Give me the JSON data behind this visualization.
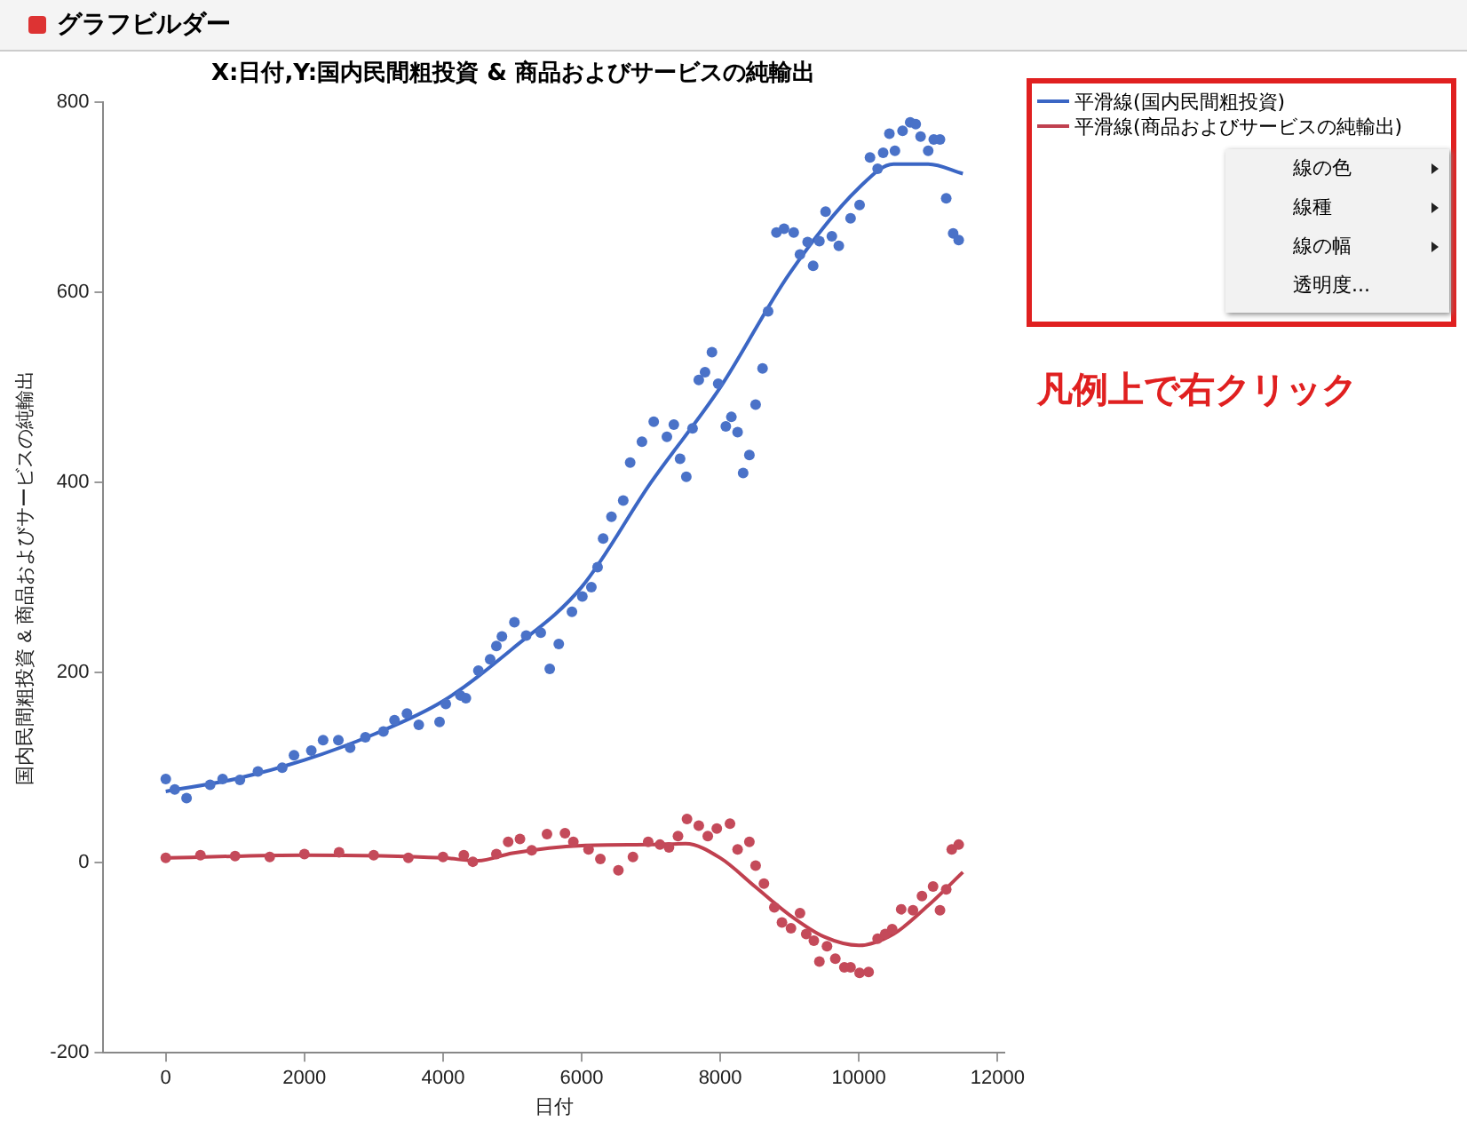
{
  "chart_data": {
    "type": "scatter",
    "title": "X:日付,Y:国内民間粗投資 & 商品およびサービスの純輸出",
    "xlabel": "日付",
    "ylabel": "国内民間粗投資 & 商品およびサービスの純輸出",
    "annotations": [
      "グラフビルダー",
      "線の色",
      "線種",
      "線の幅",
      "透明度...",
      "凡例上で右クリック"
    ],
    "xlim": [
      -900,
      12100
    ],
    "xticks": [
      0,
      2000,
      4000,
      6000,
      8000,
      10000,
      12000
    ],
    "ylim": [
      -200,
      800
    ],
    "yticks": [
      -200,
      0,
      200,
      400,
      600,
      800
    ],
    "legend": "right",
    "series": [
      {
        "marker": "circle",
        "color": "#4a72c8",
        "x": [
          0,
          130,
          300,
          640,
          820,
          1070,
          1330,
          1680,
          1850,
          2100,
          2270,
          2490,
          2660,
          2880,
          3140,
          3300,
          3480,
          3650,
          3950,
          4040,
          4250,
          4330,
          4510,
          4680,
          4770,
          4850,
          5030,
          5200,
          5410,
          5540,
          5670,
          5860,
          6010,
          6140,
          6230,
          6310,
          6430,
          6600,
          6700,
          6870,
          7040,
          7230,
          7330,
          7420,
          7510,
          7600,
          7690,
          7780,
          7880,
          7970,
          8080,
          8160,
          8250,
          8330,
          8420,
          8510,
          8610,
          8690,
          8810,
          8920,
          9060,
          9150,
          9260,
          9340,
          9430,
          9520,
          9610,
          9710,
          9880,
          10010,
          10160,
          10270,
          10350,
          10440,
          10520,
          10630,
          10740,
          10820,
          10890,
          11000,
          11080,
          11170,
          11260,
          11360,
          11440
        ],
        "values": [
          88,
          77,
          68,
          82,
          88,
          87,
          96,
          100,
          113,
          118,
          129,
          129,
          121,
          132,
          138,
          150,
          157,
          145,
          148,
          167,
          176,
          173,
          202,
          214,
          228,
          238,
          253,
          239,
          242,
          204,
          230,
          264,
          280,
          290,
          311,
          341,
          364,
          381,
          421,
          443,
          464,
          448,
          461,
          425,
          406,
          457,
          508,
          516,
          537,
          504,
          459,
          469,
          453,
          410,
          429,
          482,
          520,
          580,
          663,
          667,
          663,
          640,
          653,
          628,
          654,
          685,
          659,
          649,
          678,
          692,
          742,
          730,
          747,
          767,
          749,
          770,
          779,
          777,
          764,
          749,
          761,
          761,
          699,
          662,
          655
        ]
      },
      {
        "marker": "circle",
        "color": "#c44a5a",
        "x": [
          0,
          500,
          1000,
          1500,
          2000,
          2500,
          3000,
          3500,
          4000,
          4300,
          4430,
          4770,
          4940,
          5110,
          5280,
          5500,
          5760,
          5880,
          6100,
          6270,
          6530,
          6740,
          6960,
          7130,
          7260,
          7390,
          7520,
          7690,
          7820,
          7950,
          8140,
          8250,
          8420,
          8510,
          8630,
          8780,
          8890,
          9020,
          9150,
          9240,
          9350,
          9430,
          9540,
          9660,
          9790,
          9880,
          10010,
          10140,
          10270,
          10380,
          10480,
          10610,
          10780,
          10910,
          11070,
          11170,
          11260,
          11340,
          11440
        ],
        "values": [
          5,
          8,
          7,
          6,
          9,
          11,
          8,
          5,
          6,
          8,
          1,
          9,
          22,
          25,
          13,
          30,
          31,
          22,
          14,
          4,
          -8,
          6,
          22,
          19,
          16,
          28,
          46,
          39,
          28,
          36,
          41,
          14,
          22,
          -3,
          -22,
          -47,
          -63,
          -69,
          -53,
          -75,
          -82,
          -104,
          -88,
          -101,
          -110,
          -110,
          -116,
          -115,
          -80,
          -75,
          -70,
          -49,
          -50,
          -35,
          -25,
          -50,
          -28,
          14,
          19
        ]
      },
      {
        "type": "line",
        "marker": "none",
        "name": "平滑線(国内民間粗投資)",
        "color": "#3b66c4",
        "x": [
          0,
          1000,
          2000,
          3000,
          4000,
          5000,
          6000,
          7000,
          8000,
          9000,
          10000,
          10500,
          11000,
          11500
        ],
        "values": [
          75,
          88,
          108,
          135,
          170,
          225,
          290,
          400,
          500,
          620,
          710,
          735,
          735,
          725
        ]
      },
      {
        "type": "line",
        "marker": "none",
        "name": "平滑線(商品およびサービスの純輸出)",
        "color": "#c0404f",
        "x": [
          0,
          2000,
          4000,
          4500,
          5000,
          6000,
          7000,
          7500,
          8000,
          8500,
          9000,
          9500,
          10000,
          10500,
          11000,
          11500
        ],
        "values": [
          5,
          8,
          5,
          2,
          10,
          18,
          19,
          20,
          5,
          -25,
          -55,
          -78,
          -87,
          -75,
          -45,
          -10
        ]
      }
    ]
  }
}
